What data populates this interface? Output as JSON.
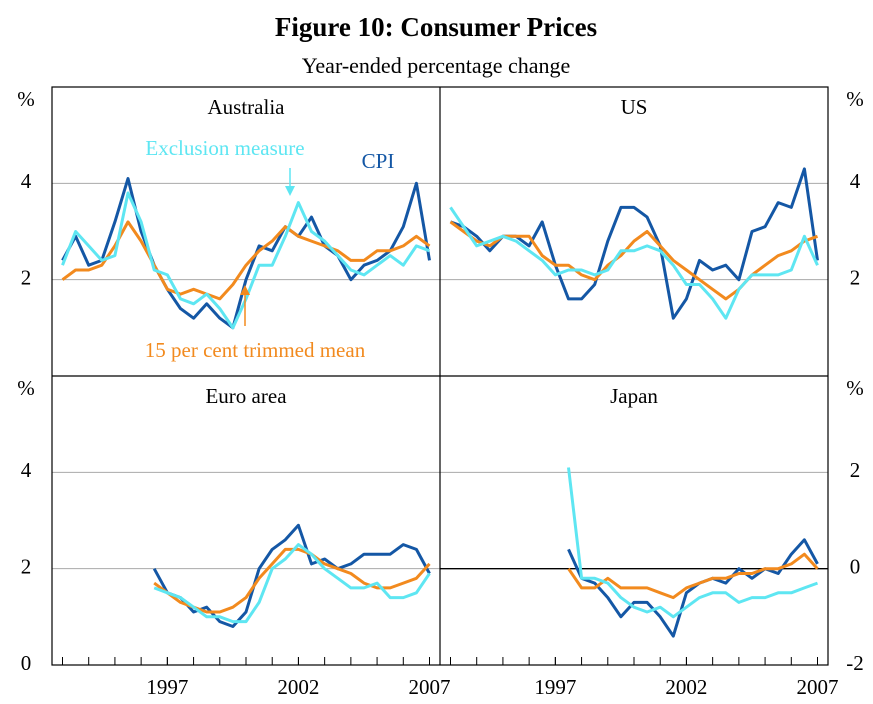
{
  "title": "Figure 10: Consumer Prices",
  "subtitle": "Year-ended percentage change",
  "chart_data": [
    {
      "type": "line",
      "title": "Australia",
      "ylabel": "%",
      "yaxis_side": "left",
      "x": [
        1993,
        1993.5,
        1994,
        1994.5,
        1995,
        1995.5,
        1996,
        1996.5,
        1997,
        1997.5,
        1998,
        1998.5,
        1999,
        1999.5,
        2000,
        2000.5,
        2001,
        2001.5,
        2002,
        2002.5,
        2003,
        2003.5,
        2004,
        2004.5,
        2005,
        2005.5,
        2006,
        2006.5,
        2007
      ],
      "xlim": [
        1992.6,
        2007.4
      ],
      "ylim": [
        0,
        6
      ],
      "yticks": [
        2,
        4
      ],
      "grid": true,
      "series": [
        {
          "name": "CPI",
          "color": "#1457a5",
          "values": [
            2.4,
            2.9,
            2.3,
            2.4,
            3.2,
            4.1,
            3.0,
            2.3,
            1.8,
            1.4,
            1.2,
            1.5,
            1.2,
            1.0,
            2.0,
            2.7,
            2.6,
            3.1,
            2.9,
            3.3,
            2.7,
            2.5,
            2.0,
            2.3,
            2.4,
            2.6,
            3.1,
            4.0,
            2.4
          ]
        },
        {
          "name": "15 per cent trimmed mean",
          "color": "#f28a1e",
          "values": [
            2.0,
            2.2,
            2.2,
            2.3,
            2.7,
            3.2,
            2.8,
            2.3,
            1.8,
            1.7,
            1.8,
            1.7,
            1.6,
            1.9,
            2.3,
            2.6,
            2.8,
            3.1,
            2.9,
            2.8,
            2.7,
            2.6,
            2.4,
            2.4,
            2.6,
            2.6,
            2.7,
            2.9,
            2.7
          ]
        },
        {
          "name": "Exclusion measure",
          "color": "#5ee6f2",
          "values": [
            2.3,
            3.0,
            2.7,
            2.4,
            2.5,
            3.8,
            3.2,
            2.2,
            2.1,
            1.6,
            1.5,
            1.7,
            1.4,
            1.0,
            1.6,
            2.3,
            2.3,
            2.9,
            3.6,
            3.0,
            2.8,
            2.5,
            2.2,
            2.1,
            2.3,
            2.5,
            2.3,
            2.7,
            2.6
          ]
        }
      ]
    },
    {
      "type": "line",
      "title": "US",
      "ylabel": "%",
      "yaxis_side": "right",
      "x": [
        1993,
        1993.5,
        1994,
        1994.5,
        1995,
        1995.5,
        1996,
        1996.5,
        1997,
        1997.5,
        1998,
        1998.5,
        1999,
        1999.5,
        2000,
        2000.5,
        2001,
        2001.5,
        2002,
        2002.5,
        2003,
        2003.5,
        2004,
        2004.5,
        2005,
        2005.5,
        2006,
        2006.5,
        2007
      ],
      "xlim": [
        1992.6,
        2007.4
      ],
      "ylim": [
        0,
        6
      ],
      "yticks": [
        2,
        4
      ],
      "grid": true,
      "series": [
        {
          "color": "#1457a5",
          "values": [
            3.2,
            3.1,
            2.9,
            2.6,
            2.9,
            2.9,
            2.7,
            3.2,
            2.3,
            1.6,
            1.6,
            1.9,
            2.8,
            3.5,
            3.5,
            3.3,
            2.7,
            1.2,
            1.6,
            2.4,
            2.2,
            2.3,
            2.0,
            3.0,
            3.1,
            3.6,
            3.5,
            4.3,
            2.4
          ]
        },
        {
          "color": "#f28a1e",
          "values": [
            3.2,
            3.0,
            2.8,
            2.7,
            2.9,
            2.9,
            2.9,
            2.5,
            2.3,
            2.3,
            2.1,
            2.0,
            2.3,
            2.5,
            2.8,
            3.0,
            2.7,
            2.4,
            2.2,
            2.0,
            1.8,
            1.6,
            1.8,
            2.1,
            2.3,
            2.5,
            2.6,
            2.8,
            2.9
          ]
        },
        {
          "color": "#5ee6f2",
          "values": [
            3.5,
            3.1,
            2.7,
            2.8,
            2.9,
            2.8,
            2.6,
            2.4,
            2.1,
            2.2,
            2.2,
            2.1,
            2.2,
            2.6,
            2.6,
            2.7,
            2.6,
            2.3,
            1.9,
            1.9,
            1.6,
            1.2,
            1.8,
            2.1,
            2.1,
            2.1,
            2.2,
            2.9,
            2.3
          ]
        }
      ]
    },
    {
      "type": "line",
      "title": "Euro area",
      "ylabel": "%",
      "yaxis_side": "left",
      "x": [
        1993,
        1993.5,
        1994,
        1994.5,
        1995,
        1995.5,
        1996,
        1996.5,
        1997,
        1997.5,
        1998,
        1998.5,
        1999,
        1999.5,
        2000,
        2000.5,
        2001,
        2001.5,
        2002,
        2002.5,
        2003,
        2003.5,
        2004,
        2004.5,
        2005,
        2005.5,
        2006,
        2006.5,
        2007
      ],
      "xlim": [
        1992.6,
        2007.4
      ],
      "xticks": [
        1997,
        2002,
        2007
      ],
      "ylim": [
        0,
        6
      ],
      "yticks": [
        0,
        2,
        4
      ],
      "grid": true,
      "series": [
        {
          "color": "#1457a5",
          "values": [
            null,
            null,
            null,
            null,
            null,
            null,
            null,
            2.0,
            1.5,
            1.4,
            1.1,
            1.2,
            0.9,
            0.8,
            1.1,
            2.0,
            2.4,
            2.6,
            2.9,
            2.1,
            2.2,
            2.0,
            2.1,
            2.3,
            2.3,
            2.3,
            2.5,
            2.4,
            1.9
          ]
        },
        {
          "color": "#f28a1e",
          "values": [
            null,
            null,
            null,
            null,
            null,
            null,
            null,
            1.7,
            1.5,
            1.3,
            1.2,
            1.1,
            1.1,
            1.2,
            1.4,
            1.8,
            2.1,
            2.4,
            2.4,
            2.3,
            2.1,
            2.0,
            1.9,
            1.7,
            1.6,
            1.6,
            1.7,
            1.8,
            2.1
          ]
        },
        {
          "color": "#5ee6f2",
          "values": [
            null,
            null,
            null,
            null,
            null,
            null,
            null,
            1.6,
            1.5,
            1.4,
            1.2,
            1.0,
            1.0,
            0.9,
            0.9,
            1.3,
            2.0,
            2.2,
            2.5,
            2.3,
            2.0,
            1.8,
            1.6,
            1.6,
            1.7,
            1.4,
            1.4,
            1.5,
            1.9
          ]
        }
      ]
    },
    {
      "type": "line",
      "title": "Japan",
      "ylabel": "%",
      "yaxis_side": "right",
      "x": [
        1993,
        1993.5,
        1994,
        1994.5,
        1995,
        1995.5,
        1996,
        1996.5,
        1997,
        1997.5,
        1998,
        1998.5,
        1999,
        1999.5,
        2000,
        2000.5,
        2001,
        2001.5,
        2002,
        2002.5,
        2003,
        2003.5,
        2004,
        2004.5,
        2005,
        2005.5,
        2006,
        2006.5,
        2007
      ],
      "xlim": [
        1992.6,
        2007.4
      ],
      "xticks": [
        1997,
        2002,
        2007
      ],
      "ylim": [
        -2,
        4
      ],
      "yticks": [
        -2,
        0,
        2
      ],
      "grid": true,
      "zero_line": true,
      "series": [
        {
          "color": "#1457a5",
          "values": [
            null,
            null,
            null,
            null,
            null,
            null,
            null,
            null,
            null,
            0.4,
            -0.2,
            -0.3,
            -0.6,
            -1.0,
            -0.7,
            -0.7,
            -1.0,
            -1.4,
            -0.5,
            -0.3,
            -0.2,
            -0.3,
            0.0,
            -0.2,
            0.0,
            -0.1,
            0.3,
            0.6,
            0.1
          ]
        },
        {
          "color": "#f28a1e",
          "values": [
            null,
            null,
            null,
            null,
            null,
            null,
            null,
            null,
            null,
            0.0,
            -0.4,
            -0.4,
            -0.2,
            -0.4,
            -0.4,
            -0.4,
            -0.5,
            -0.6,
            -0.4,
            -0.3,
            -0.2,
            -0.2,
            -0.1,
            -0.1,
            0.0,
            0.0,
            0.1,
            0.3,
            0.0
          ]
        },
        {
          "color": "#5ee6f2",
          "values": [
            null,
            null,
            null,
            null,
            null,
            null,
            null,
            null,
            null,
            2.1,
            -0.2,
            -0.2,
            -0.3,
            -0.6,
            -0.8,
            -0.9,
            -0.8,
            -1.0,
            -0.8,
            -0.6,
            -0.5,
            -0.5,
            -0.7,
            -0.6,
            -0.6,
            -0.5,
            -0.5,
            -0.4,
            -0.3
          ]
        }
      ]
    }
  ]
}
